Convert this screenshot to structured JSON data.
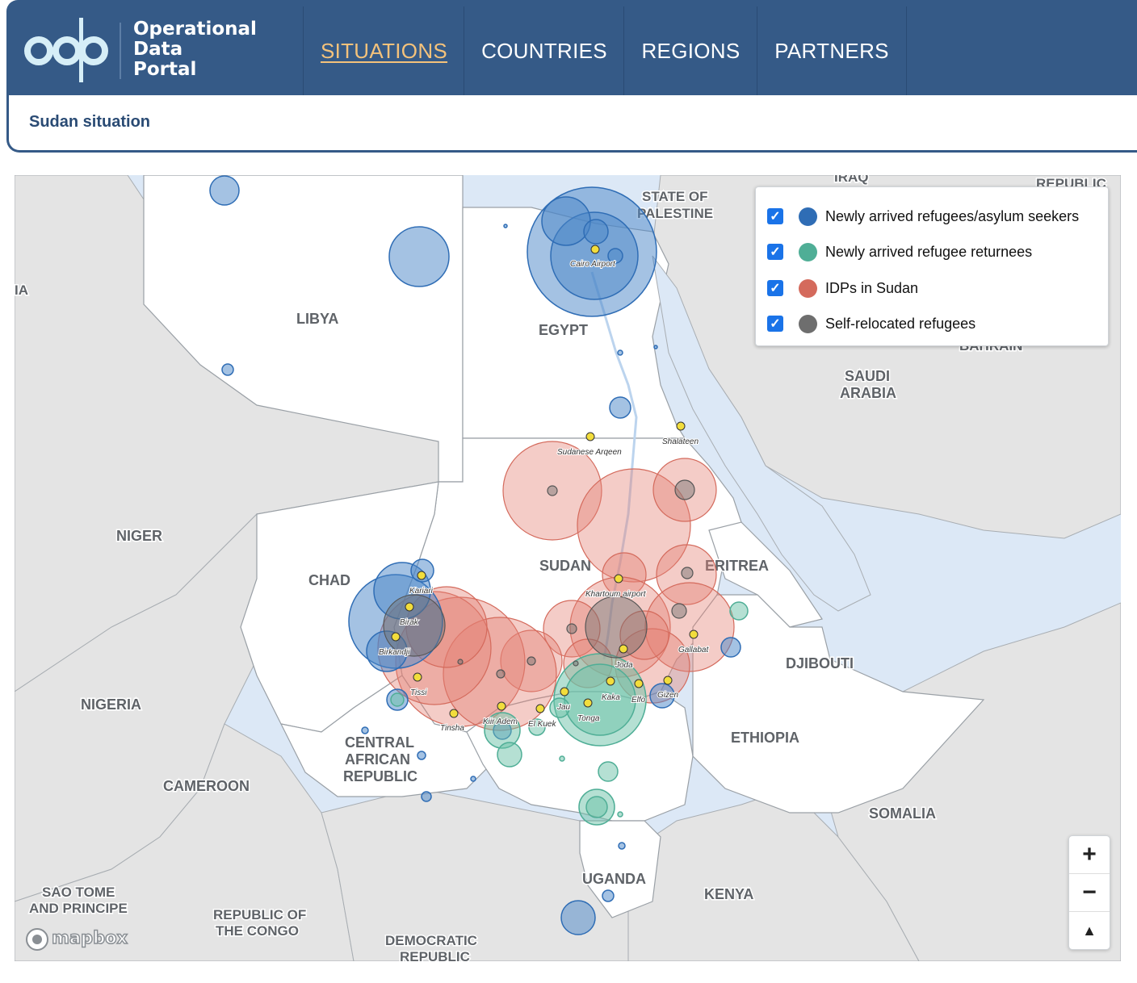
{
  "header": {
    "logo_lines": [
      "Operational",
      "Data",
      "Portal"
    ],
    "nav": [
      {
        "label": "SITUATIONS",
        "active": true
      },
      {
        "label": "COUNTRIES",
        "active": false
      },
      {
        "label": "REGIONS",
        "active": false
      },
      {
        "label": "PARTNERS",
        "active": false
      }
    ]
  },
  "page": {
    "title": "Sudan situation"
  },
  "legend": {
    "items": [
      {
        "label": "Newly arrived refugees/asylum seekers",
        "color": "#2f6db5",
        "checked": true
      },
      {
        "label": "Newly arrived refugee returnees",
        "color": "#4fae96",
        "checked": true
      },
      {
        "label": "IDPs in Sudan",
        "color": "#d46a5c",
        "checked": true
      },
      {
        "label": "Self-relocated refugees",
        "color": "#6e6e6e",
        "checked": true
      }
    ]
  },
  "map": {
    "country_labels": [
      "IRAQ",
      "REPUBLIC",
      "STATE OF",
      "PALESTINE",
      "IA",
      "LIBYA",
      "EGYPT",
      "BAHRAIN",
      "SAUDI",
      "ARABIA",
      "NIGER",
      "CHAD",
      "SUDAN",
      "ERITREA",
      "DJIBOUTI",
      "NIGERIA",
      "CENTRAL",
      "AFRICAN",
      "REPUBLIC",
      "CAMEROON",
      "ETHIOPIA",
      "SOMALIA",
      "UGANDA",
      "KENYA",
      "SAO TOME",
      "AND PRINCIPE",
      "REPUBLIC OF",
      "THE CONGO",
      "DEMOCRATIC",
      "REPUBLIC"
    ],
    "place_labels": [
      "Cairo Airport",
      "Sudanese Arqeen",
      "Shalateen",
      "Kariari",
      "Birak",
      "Birkandji",
      "Tissi",
      "Tinsha",
      "Kiir Adem",
      "El Kuek",
      "Jau",
      "Tonga",
      "Kaka",
      "Elfo",
      "Gizen",
      "Joda",
      "Gallabat",
      "Khartoum airport"
    ],
    "attribution": "mapbox",
    "zoom_in": "+",
    "zoom_out": "−",
    "compass": "▲"
  }
}
